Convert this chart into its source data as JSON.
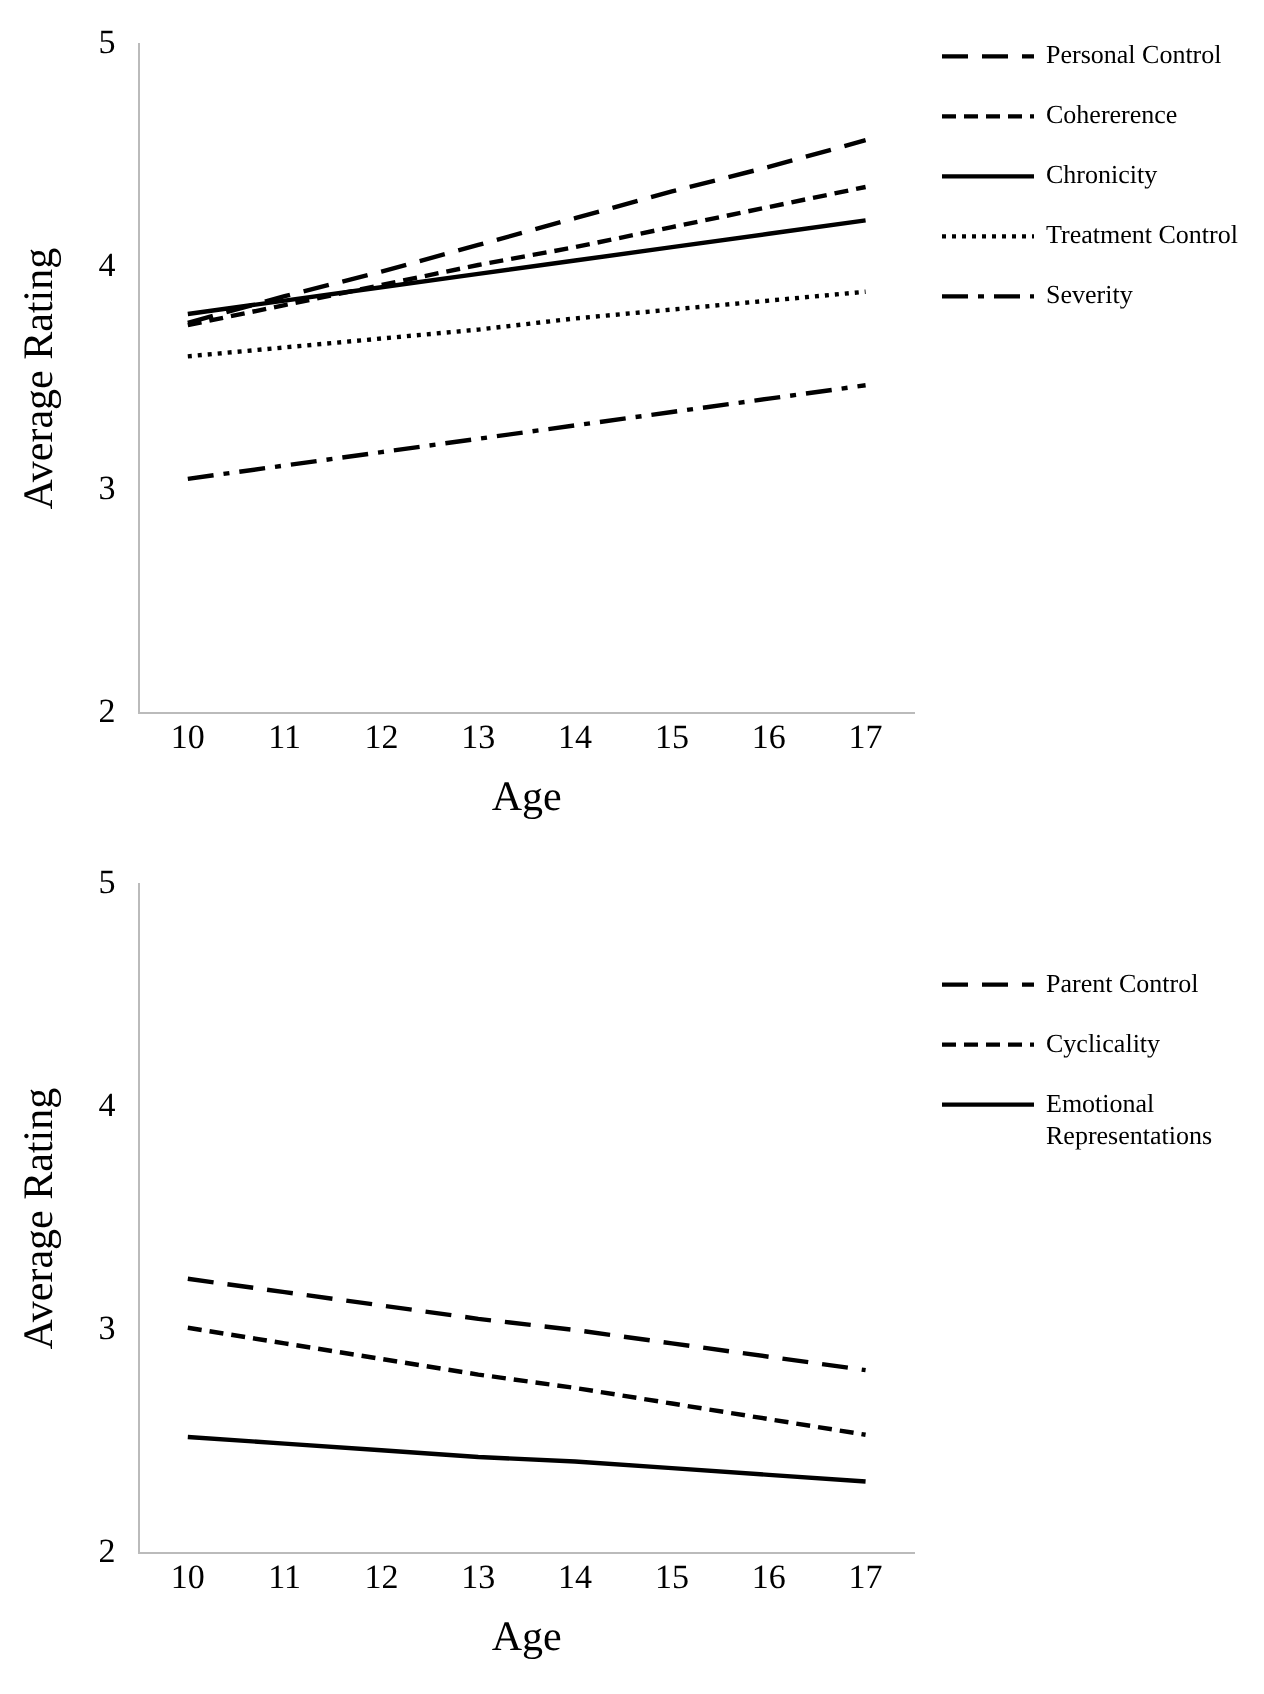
{
  "chart_data": [
    {
      "type": "line",
      "xlabel": "Age",
      "ylabel": "Average Rating",
      "categories": [
        "10",
        "11",
        "12",
        "13",
        "14",
        "15",
        "16",
        "17"
      ],
      "ylim": [
        2,
        5
      ],
      "yticks": [
        2,
        3,
        4,
        5
      ],
      "grid": false,
      "legend": "top right",
      "marker": "none",
      "series": [
        {
          "name": "Personal Control",
          "color": "#000000",
          "line_style": "longdash",
          "values": [
            3.75,
            3.87,
            3.98,
            4.1,
            4.22,
            4.34,
            4.45,
            4.57
          ]
        },
        {
          "name": "Cohererence",
          "color": "#000000",
          "line_style": "dashed",
          "values": [
            3.74,
            3.83,
            3.92,
            4.01,
            4.09,
            4.18,
            4.27,
            4.36
          ]
        },
        {
          "name": "Chronicity",
          "color": "#000000",
          "line_style": "solid",
          "values": [
            3.79,
            3.85,
            3.91,
            3.97,
            4.03,
            4.09,
            4.15,
            4.21
          ]
        },
        {
          "name": "Treatment Control",
          "color": "#000000",
          "line_style": "dotted",
          "values": [
            3.6,
            3.64,
            3.68,
            3.72,
            3.77,
            3.81,
            3.85,
            3.89
          ]
        },
        {
          "name": "Severity",
          "color": "#000000",
          "line_style": "dashdot",
          "values": [
            3.05,
            3.11,
            3.17,
            3.23,
            3.29,
            3.35,
            3.41,
            3.47
          ]
        }
      ]
    },
    {
      "type": "line",
      "xlabel": "Age",
      "ylabel": "Average Rating",
      "categories": [
        "10",
        "11",
        "12",
        "13",
        "14",
        "15",
        "16",
        "17"
      ],
      "ylim": [
        2,
        5
      ],
      "yticks": [
        2,
        3,
        4,
        5
      ],
      "grid": false,
      "legend": "right",
      "marker": "none",
      "series": [
        {
          "name": "Parent Control",
          "color": "#000000",
          "line_style": "longdash",
          "values": [
            3.23,
            3.17,
            3.11,
            3.05,
            3.0,
            2.94,
            2.88,
            2.82
          ]
        },
        {
          "name": "Cyclicality",
          "color": "#000000",
          "line_style": "dashed",
          "values": [
            3.01,
            2.94,
            2.87,
            2.8,
            2.74,
            2.67,
            2.6,
            2.53
          ]
        },
        {
          "name": "Emotional Representations",
          "color": "#000000",
          "line_style": "solid",
          "values": [
            2.52,
            2.49,
            2.46,
            2.43,
            2.41,
            2.38,
            2.35,
            2.32
          ]
        }
      ]
    }
  ]
}
